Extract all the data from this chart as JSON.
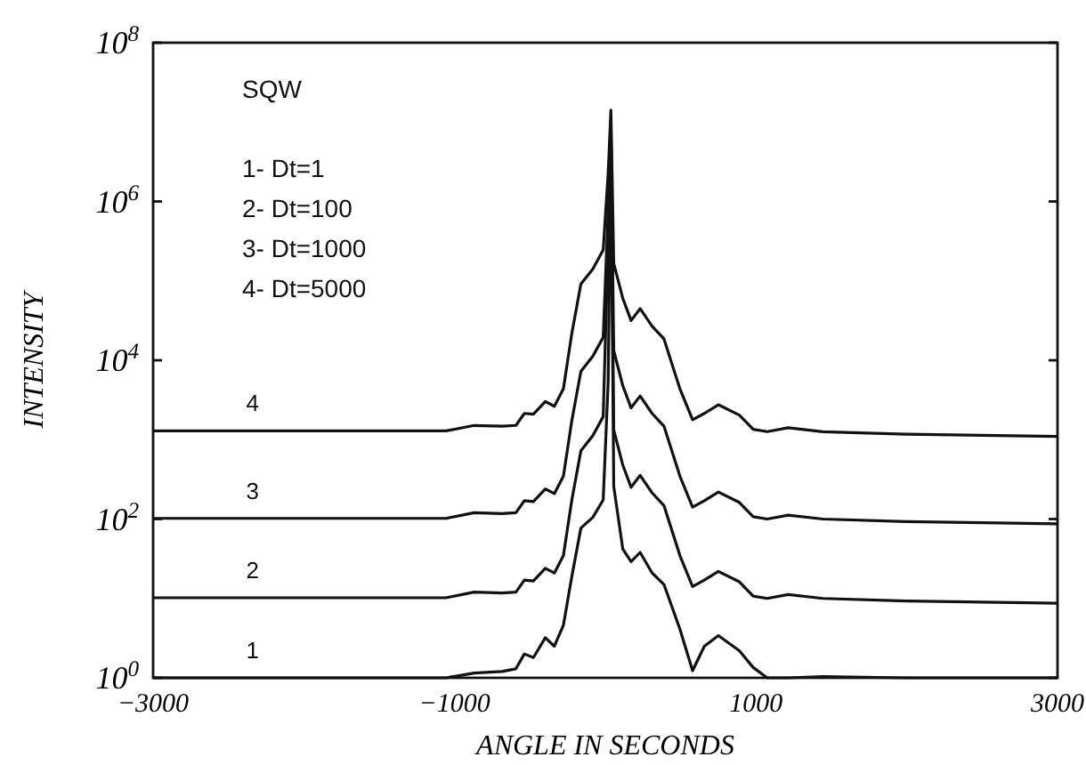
{
  "chart_data": {
    "type": "line",
    "xlabel": "ANGLE IN SECONDS",
    "ylabel": "INTENSITY",
    "log": "y",
    "grid": false,
    "marker": "none",
    "line_style": "solid",
    "xlim": [
      -3000,
      3000
    ],
    "xticks": [
      -3000,
      -1000,
      1000,
      3000
    ],
    "ylim": [
      1,
      100000000
    ],
    "yticks": [
      {
        "value": 1,
        "label": "10$^{0}$"
      },
      {
        "value": 100,
        "label": "10$^{2}$"
      },
      {
        "value": 10000,
        "label": "10$^{4}$"
      },
      {
        "value": 1000000,
        "label": "10$^{6}$"
      },
      {
        "value": 100000000,
        "label": "10$^{8}$"
      }
    ],
    "annotations": [
      "SQW",
      "1- Dt=1",
      "2- Dt=100",
      "3- Dt=1000",
      "4- Dt=5000"
    ],
    "x": [
      -3000,
      -1056,
      -870,
      -685,
      -593,
      -537,
      -477,
      -398,
      -338,
      -278,
      -222,
      -162,
      -83,
      -14,
      19,
      37,
      56,
      116,
      171,
      231,
      310,
      389,
      495,
      579,
      657,
      750,
      889,
      981,
      1074,
      1213,
      1444,
      2000,
      3000
    ],
    "series": [
      {
        "name": "1",
        "color": "#111111",
        "values": [
          1,
          1,
          1.15,
          1.2,
          1.3,
          2,
          1.8,
          3.2,
          2.5,
          4.6,
          19,
          77,
          105,
          174,
          5400,
          5000000,
          257,
          42,
          29,
          38,
          21,
          15,
          4.1,
          1.23,
          2.5,
          3.4,
          2.2,
          1.35,
          1,
          1,
          1.04,
          1,
          1
        ]
      },
      {
        "name": "2",
        "color": "#111111",
        "values": [
          10.2,
          10.2,
          12,
          11.7,
          12,
          17,
          16.6,
          24,
          20.9,
          34.7,
          174,
          724,
          1120,
          1950,
          316000,
          7940000,
          1320,
          479,
          251,
          355,
          214,
          148,
          34.7,
          14.1,
          17,
          21.9,
          16.2,
          10.7,
          10,
          11.2,
          10,
          9.3,
          8.7
        ]
      },
      {
        "name": "3",
        "color": "#111111",
        "values": [
          102,
          102,
          120,
          117,
          120,
          170,
          166,
          240,
          209,
          347,
          1740,
          7240,
          11200,
          19500,
          794000,
          10000000,
          13200,
          4790,
          2510,
          3550,
          2140,
          1480,
          347,
          141,
          170,
          219,
          162,
          107,
          100,
          112,
          100,
          93,
          87
        ]
      },
      {
        "name": "4",
        "color": "#111111",
        "values": [
          1290,
          1290,
          1510,
          1480,
          1510,
          2140,
          2090,
          3020,
          2630,
          4370,
          21900,
          91200,
          141000,
          245000,
          2290000,
          14100000,
          166000,
          60300,
          31600,
          44700,
          26900,
          18600,
          4370,
          1780,
          2140,
          2750,
          2040,
          1350,
          1260,
          1410,
          1260,
          1170,
          1100
        ]
      }
    ]
  }
}
